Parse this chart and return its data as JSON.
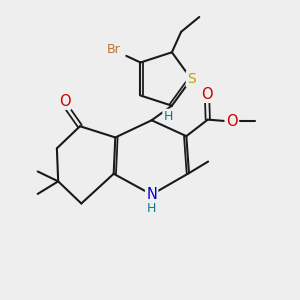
{
  "bg_color": "#eeeeee",
  "bond_color": "#1a1a1a",
  "bond_width": 1.5,
  "dbo": 0.06,
  "atom_colors": {
    "Br": "#b87333",
    "S": "#c8a000",
    "O": "#cc0000",
    "N": "#0000cc",
    "H": "#008080"
  },
  "font_size": 9.0,
  "fig_size": [
    3.0,
    3.0
  ],
  "dpi": 100
}
